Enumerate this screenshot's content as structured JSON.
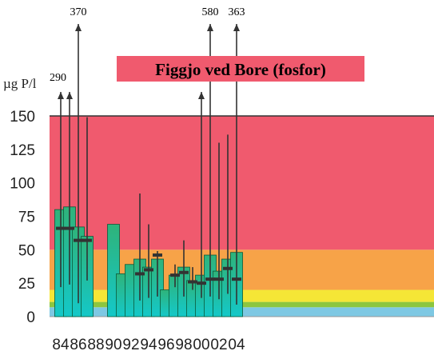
{
  "chart_data": {
    "type": "bar",
    "title": "Figgjo ved Bore (fosfor)",
    "ylabel": "µg P/l",
    "xlabel": "",
    "ylim": [
      0,
      150
    ],
    "yticks": [
      0,
      25,
      50,
      75,
      100,
      125,
      150
    ],
    "xtick_labels": [
      "84",
      "86",
      "88",
      "90",
      "92",
      "94",
      "96",
      "98",
      "00",
      "02",
      "04"
    ],
    "background_bands": [
      {
        "from": 0,
        "to": 7,
        "color": "#7ec8e3"
      },
      {
        "from": 7,
        "to": 11,
        "color": "#8cc63f"
      },
      {
        "from": 11,
        "to": 20,
        "color": "#f5e636"
      },
      {
        "from": 20,
        "to": 50,
        "color": "#f7a348"
      },
      {
        "from": 50,
        "to": 150,
        "color": "#f05a6e"
      }
    ],
    "colors": {
      "bar_top": "#2fb37a",
      "bar_bottom": "#14c8c8",
      "bar_edge": "#0a5a3a",
      "range_line": "#333333",
      "median": "#333333"
    },
    "years": [
      1984,
      1985,
      1986,
      1987,
      1990,
      1991,
      1992,
      1993,
      1994,
      1995,
      1996,
      1997,
      1998,
      1999,
      2000,
      2001,
      2002,
      2003,
      2004
    ],
    "mean": [
      80,
      82,
      67,
      60,
      69,
      32,
      39,
      43,
      37,
      43,
      20,
      31,
      37,
      27,
      31,
      46,
      34,
      43,
      48
    ],
    "median": [
      66,
      66,
      57,
      57,
      null,
      null,
      null,
      32,
      35,
      46,
      null,
      31,
      33,
      26,
      25,
      28,
      28,
      36,
      28
    ],
    "max": [
      152,
      290,
      370,
      149,
      null,
      null,
      null,
      92,
      69,
      49,
      null,
      39,
      57,
      37,
      160,
      580,
      130,
      136,
      363
    ],
    "min": [
      22,
      24,
      10,
      27,
      null,
      null,
      null,
      12,
      14,
      15,
      null,
      22,
      15,
      20,
      14,
      15,
      13,
      17,
      9
    ],
    "off_scale_labels": [
      {
        "year": 1985,
        "text": "290"
      },
      {
        "year": 1986,
        "text": "370"
      },
      {
        "year": 2001,
        "text": "580"
      },
      {
        "year": 2004,
        "text": "363"
      }
    ]
  }
}
